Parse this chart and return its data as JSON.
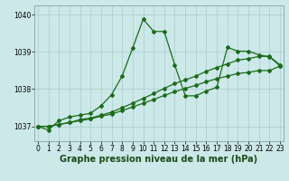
{
  "xlabel": "Graphe pression niveau de la mer (hPa)",
  "background_color": "#cce8e8",
  "grid_color": "#aacccc",
  "line_color": "#1a6b1a",
  "ylim": [
    1036.6,
    1040.25
  ],
  "xlim": [
    -0.3,
    23.3
  ],
  "yticks": [
    1037,
    1038,
    1039,
    1040
  ],
  "xticks": [
    0,
    1,
    2,
    3,
    4,
    5,
    6,
    7,
    8,
    9,
    10,
    11,
    12,
    13,
    14,
    15,
    16,
    17,
    18,
    19,
    20,
    21,
    22,
    23
  ],
  "series1": {
    "x": [
      0,
      1,
      2,
      3,
      4,
      5,
      6,
      7,
      8,
      9,
      10,
      11,
      12,
      13,
      14,
      15,
      16,
      17,
      18,
      19,
      20,
      21,
      22,
      23
    ],
    "y": [
      1037.0,
      1036.9,
      1037.15,
      1037.25,
      1037.3,
      1037.35,
      1037.55,
      1037.85,
      1038.35,
      1039.1,
      1039.88,
      1039.55,
      1039.55,
      1038.65,
      1037.82,
      1037.82,
      1037.95,
      1038.05,
      1039.12,
      1039.02,
      1039.02,
      1038.92,
      1038.87,
      1038.62
    ]
  },
  "series2": {
    "x": [
      0,
      1,
      2,
      3,
      4,
      5,
      6,
      7,
      8,
      9,
      10,
      11,
      12,
      13,
      14,
      15,
      16,
      17,
      18,
      19,
      20,
      21,
      22,
      23
    ],
    "y": [
      1037.0,
      1037.0,
      1037.05,
      1037.1,
      1037.18,
      1037.22,
      1037.3,
      1037.38,
      1037.5,
      1037.62,
      1037.75,
      1037.88,
      1038.02,
      1038.15,
      1038.25,
      1038.35,
      1038.48,
      1038.58,
      1038.68,
      1038.78,
      1038.82,
      1038.88,
      1038.88,
      1038.65
    ]
  },
  "series3": {
    "x": [
      0,
      1,
      2,
      3,
      4,
      5,
      6,
      7,
      8,
      9,
      10,
      11,
      12,
      13,
      14,
      15,
      16,
      17,
      18,
      19,
      20,
      21,
      22,
      23
    ],
    "y": [
      1037.0,
      1037.0,
      1037.05,
      1037.1,
      1037.15,
      1037.2,
      1037.27,
      1037.33,
      1037.42,
      1037.52,
      1037.62,
      1037.72,
      1037.83,
      1037.93,
      1038.02,
      1038.1,
      1038.2,
      1038.28,
      1038.35,
      1038.42,
      1038.45,
      1038.5,
      1038.5,
      1038.62
    ]
  },
  "marker_size": 2.0,
  "line_width": 0.9,
  "xlabel_fontsize": 7.0,
  "xlabel_fontweight": "bold",
  "tick_fontsize": 5.5,
  "ylabel_fontsize": 5.5
}
